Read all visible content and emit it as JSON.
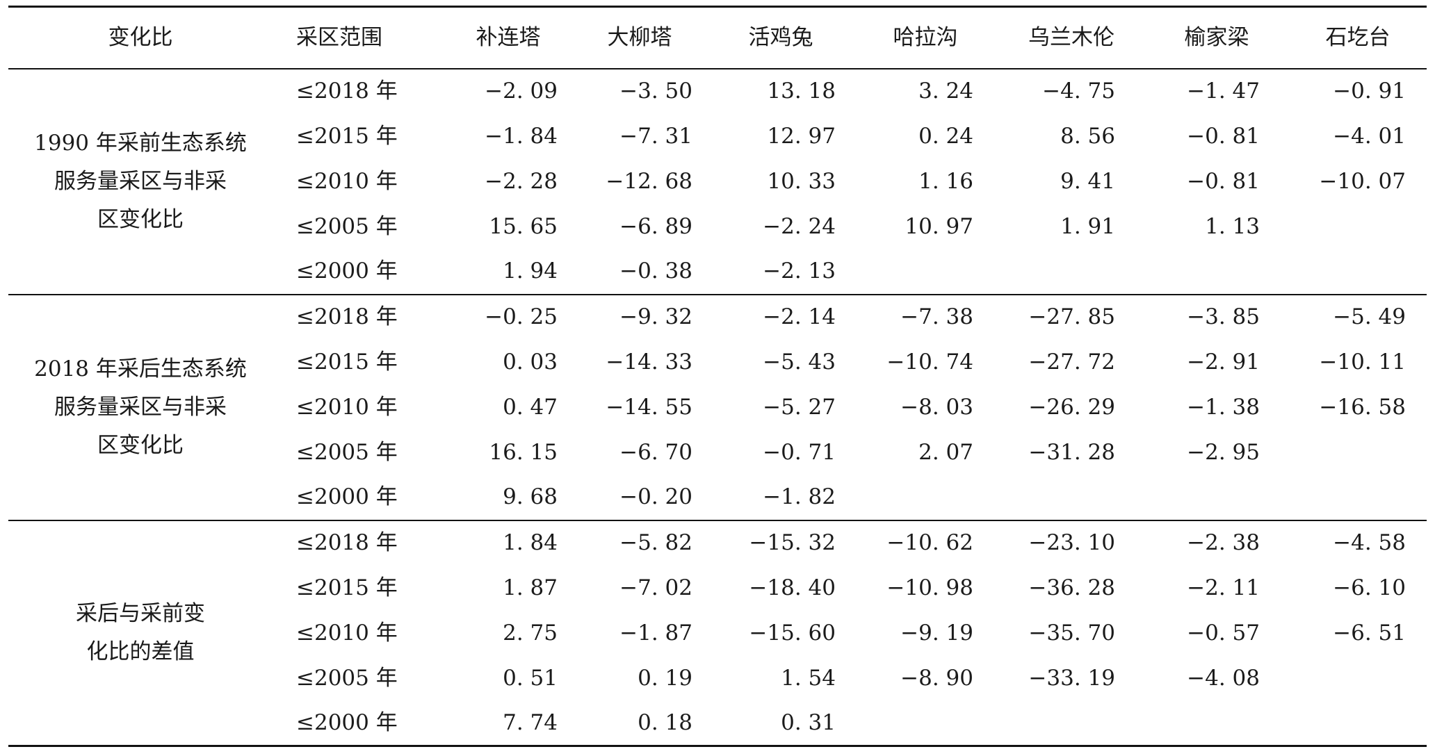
{
  "header": {
    "label": "变化比",
    "range": "采区范围",
    "areas": [
      "补连塔",
      "大柳塔",
      "活鸡兔",
      "哈拉沟",
      "乌兰木伦",
      "榆家梁",
      "石圪台"
    ]
  },
  "groups": [
    {
      "label_lines": [
        "1990 年采前生态系统",
        "服务量采区与非采",
        "区变化比"
      ],
      "rows": [
        {
          "range": "≤2018 年",
          "values": [
            "−2. 09",
            "−3. 50",
            "13. 18",
            "3. 24",
            "−4. 75",
            "−1. 47",
            "−0. 91"
          ]
        },
        {
          "range": "≤2015 年",
          "values": [
            "−1. 84",
            "−7. 31",
            "12. 97",
            "0. 24",
            "8. 56",
            "−0. 81",
            "−4. 01"
          ]
        },
        {
          "range": "≤2010 年",
          "values": [
            "−2. 28",
            "−12. 68",
            "10. 33",
            "1. 16",
            "9. 41",
            "−0. 81",
            "−10. 07"
          ]
        },
        {
          "range": "≤2005 年",
          "values": [
            "15. 65",
            "−6. 89",
            "−2. 24",
            "10. 97",
            "1. 91",
            "1. 13",
            ""
          ]
        },
        {
          "range": "≤2000 年",
          "values": [
            "1. 94",
            "−0. 38",
            "−2. 13",
            "",
            "",
            "",
            ""
          ]
        }
      ]
    },
    {
      "label_lines": [
        "2018 年采后生态系统",
        "服务量采区与非采",
        "区变化比"
      ],
      "rows": [
        {
          "range": "≤2018 年",
          "values": [
            "−0. 25",
            "−9. 32",
            "−2. 14",
            "−7. 38",
            "−27. 85",
            "−3. 85",
            "−5. 49"
          ]
        },
        {
          "range": "≤2015 年",
          "values": [
            "0. 03",
            "−14. 33",
            "−5. 43",
            "−10. 74",
            "−27. 72",
            "−2. 91",
            "−10. 11"
          ]
        },
        {
          "range": "≤2010 年",
          "values": [
            "0. 47",
            "−14. 55",
            "−5. 27",
            "−8. 03",
            "−26. 29",
            "−1. 38",
            "−16. 58"
          ]
        },
        {
          "range": "≤2005 年",
          "values": [
            "16. 15",
            "−6. 70",
            "−0. 71",
            "2. 07",
            "−31. 28",
            "−2. 95",
            ""
          ]
        },
        {
          "range": "≤2000 年",
          "values": [
            "9. 68",
            "−0. 20",
            "−1. 82",
            "",
            "",
            "",
            ""
          ]
        }
      ]
    },
    {
      "label_lines": [
        "采后与采前变",
        "化比的差值"
      ],
      "rows": [
        {
          "range": "≤2018 年",
          "values": [
            "1. 84",
            "−5. 82",
            "−15. 32",
            "−10. 62",
            "−23. 10",
            "−2. 38",
            "−4. 58"
          ]
        },
        {
          "range": "≤2015 年",
          "values": [
            "1. 87",
            "−7. 02",
            "−18. 40",
            "−10. 98",
            "−36. 28",
            "−2. 11",
            "−6. 10"
          ]
        },
        {
          "range": "≤2010 年",
          "values": [
            "2. 75",
            "−1. 87",
            "−15. 60",
            "−9. 19",
            "−35. 70",
            "−0. 57",
            "−6. 51"
          ]
        },
        {
          "range": "≤2005 年",
          "values": [
            "0. 51",
            "0. 19",
            "1. 54",
            "−8. 90",
            "−33. 19",
            "−4. 08",
            ""
          ]
        },
        {
          "range": "≤2000 年",
          "values": [
            "7. 74",
            "0. 18",
            "0. 31",
            "",
            "",
            "",
            ""
          ]
        }
      ]
    }
  ]
}
